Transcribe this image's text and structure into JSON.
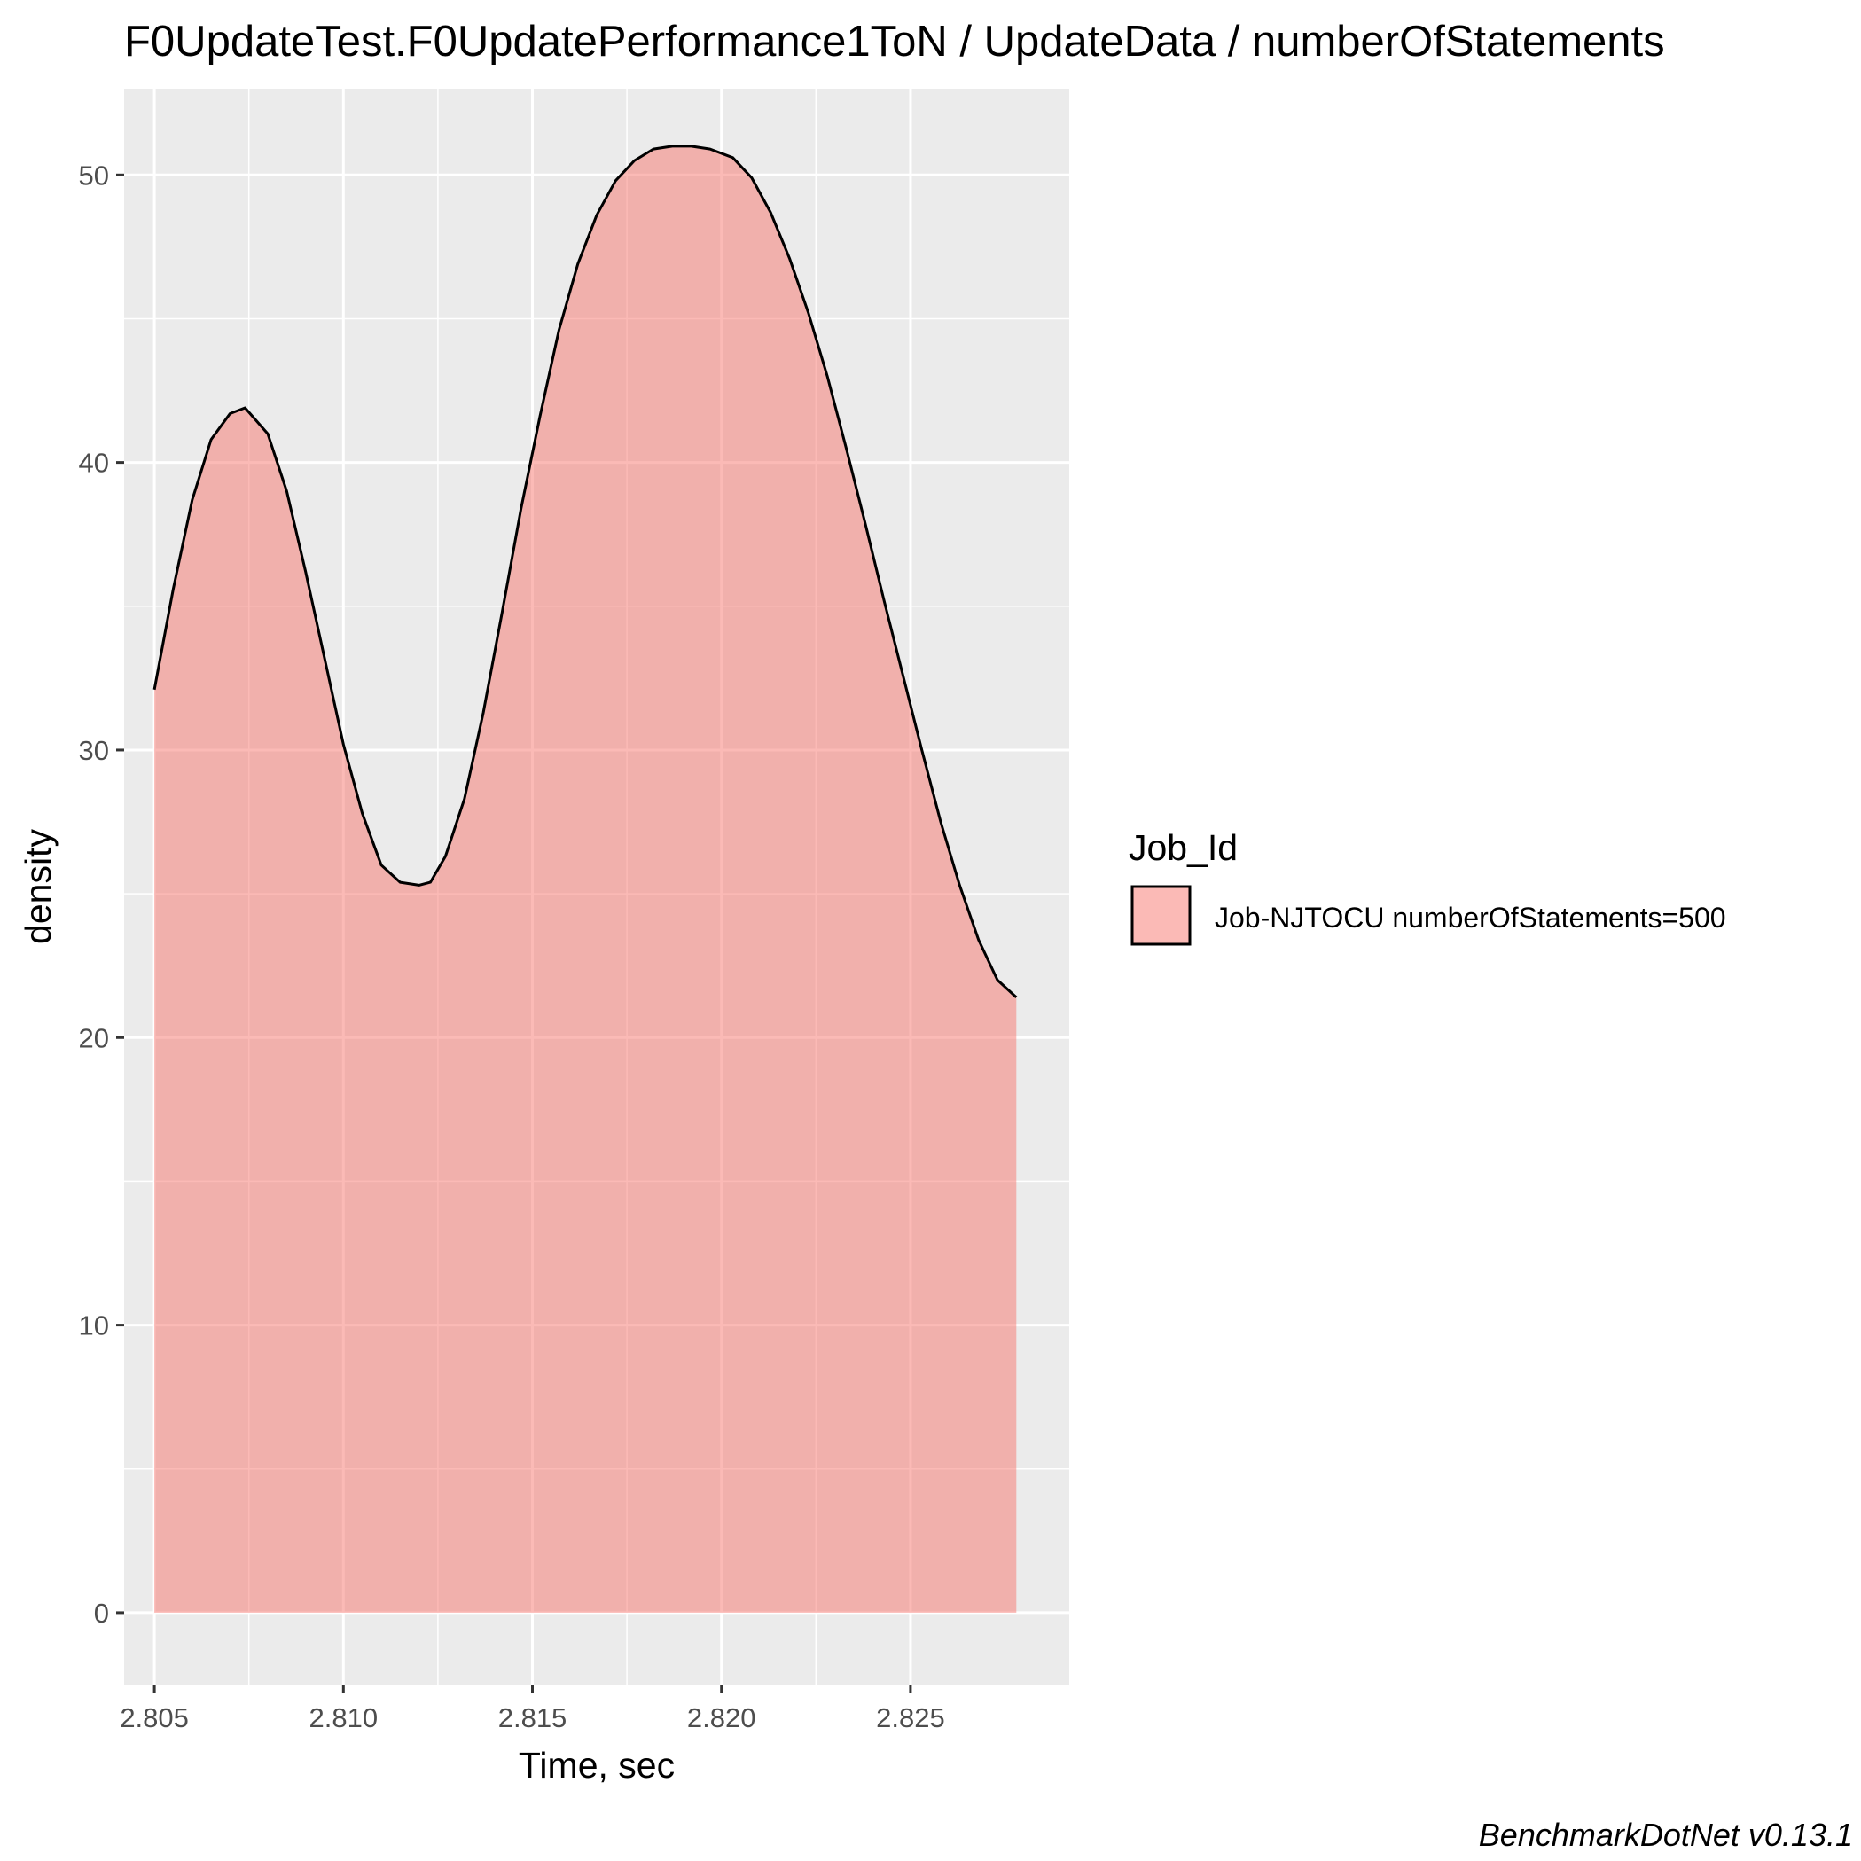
{
  "chart_data": {
    "type": "area",
    "title": "F0UpdateTest.F0UpdatePerformance1ToN / UpdateData / numberOfStatements",
    "xlabel": "Time, sec",
    "ylabel": "density",
    "xlim": [
      2.8042,
      2.8292
    ],
    "ylim": [
      -2.5,
      53.0
    ],
    "x_ticks": [
      "2.805",
      "2.810",
      "2.815",
      "2.820",
      "2.825"
    ],
    "y_ticks": [
      "0",
      "10",
      "20",
      "30",
      "40",
      "50"
    ],
    "grid": true,
    "legend": {
      "title": "Job_Id",
      "position": "right",
      "entries": [
        "Job-NJTOCU numberOfStatements=500"
      ]
    },
    "colors": {
      "fill": "#F8766D",
      "fill_opacity": 0.5,
      "line": "#000000",
      "panel": "#EBEBEB"
    },
    "series": [
      {
        "name": "Job-NJTOCU numberOfStatements=500",
        "x": [
          2.805,
          2.8055,
          2.806,
          2.8065,
          2.807,
          2.8074,
          2.808,
          2.8085,
          2.809,
          2.8095,
          2.81,
          2.8105,
          2.811,
          2.8115,
          2.812,
          2.8123,
          2.8127,
          2.8132,
          2.8137,
          2.8142,
          2.8147,
          2.8152,
          2.8157,
          2.8162,
          2.8167,
          2.8172,
          2.8177,
          2.8182,
          2.8187,
          2.8192,
          2.8197,
          2.8203,
          2.8208,
          2.8213,
          2.8218,
          2.8223,
          2.8228,
          2.8233,
          2.8238,
          2.8243,
          2.8248,
          2.8253,
          2.8258,
          2.8263,
          2.8268,
          2.8273,
          2.8278
        ],
        "y": [
          32.1,
          35.6,
          38.7,
          40.8,
          41.7,
          41.9,
          41.0,
          39.0,
          36.2,
          33.2,
          30.2,
          27.8,
          26.0,
          25.4,
          25.3,
          25.4,
          26.3,
          28.3,
          31.3,
          34.8,
          38.4,
          41.6,
          44.6,
          46.9,
          48.6,
          49.8,
          50.5,
          50.9,
          51.0,
          51.0,
          50.9,
          50.6,
          49.9,
          48.7,
          47.1,
          45.2,
          43.0,
          40.5,
          37.9,
          35.2,
          32.6,
          30.0,
          27.5,
          25.3,
          23.4,
          22.0,
          21.4
        ]
      }
    ]
  },
  "caption": "BenchmarkDotNet v0.13.1"
}
